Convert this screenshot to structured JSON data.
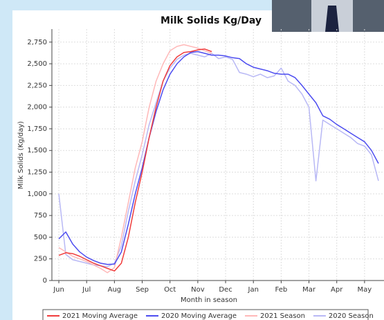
{
  "chart_data": {
    "type": "line",
    "title": "Milk Solids Kg/Day",
    "xlabel": "Month in season",
    "ylabel": "Milk Solids (Kg/day)",
    "x": [
      0,
      0.25,
      0.5,
      0.75,
      1,
      1.25,
      1.5,
      1.75,
      2,
      2.25,
      2.5,
      2.75,
      3,
      3.25,
      3.5,
      3.75,
      4,
      4.25,
      4.5,
      4.75,
      5,
      5.25,
      5.5,
      5.75,
      6,
      6.25,
      6.5,
      6.75,
      7,
      7.25,
      7.5,
      7.75,
      8,
      8.25,
      8.5,
      8.75,
      9,
      9.25,
      9.5,
      9.75,
      10,
      10.25,
      10.5,
      10.75,
      11,
      11.25,
      11.5
    ],
    "xlim": [
      -0.25,
      11.7
    ],
    "xticks": [
      {
        "value": 0,
        "label": "Jun"
      },
      {
        "value": 1,
        "label": "Jul"
      },
      {
        "value": 2,
        "label": "Aug"
      },
      {
        "value": 3,
        "label": "Sep"
      },
      {
        "value": 4,
        "label": "Oct"
      },
      {
        "value": 5,
        "label": "Nov"
      },
      {
        "value": 6,
        "label": "Dec"
      },
      {
        "value": 7,
        "label": "Jan"
      },
      {
        "value": 8,
        "label": "Feb"
      },
      {
        "value": 9,
        "label": "Mar"
      },
      {
        "value": 10,
        "label": "Apr"
      },
      {
        "value": 11,
        "label": "May"
      }
    ],
    "ylim": [
      0,
      2900
    ],
    "yticks": [
      0,
      250,
      500,
      750,
      {
        "value": 1000,
        "label": "1,000"
      },
      {
        "value": 1250,
        "label": "1,250"
      },
      {
        "value": 1500,
        "label": "1,500"
      },
      {
        "value": 1750,
        "label": "1,750"
      },
      {
        "value": 2000,
        "label": "2,000"
      },
      {
        "value": 2250,
        "label": "2,250"
      },
      {
        "value": 2500,
        "label": "2,500"
      },
      {
        "value": 2750,
        "label": "2,750"
      }
    ],
    "grid": true,
    "series": [
      {
        "name": "2020 Season",
        "color": "#b8b8f5",
        "values": [
          1000,
          300,
          240,
          220,
          200,
          180,
          170,
          160,
          200,
          400,
          800,
          1150,
          1450,
          1800,
          2050,
          2300,
          2450,
          2550,
          2600,
          2620,
          2600,
          2580,
          2620,
          2560,
          2580,
          2550,
          2400,
          2380,
          2350,
          2380,
          2340,
          2360,
          2450,
          2300,
          2250,
          2150,
          2000,
          1150,
          1850,
          1800,
          1750,
          1700,
          1650,
          1580,
          1550,
          1450,
          1150
        ]
      },
      {
        "name": "2021 Season",
        "color": "#ffb8b8",
        "values": [
          380,
          330,
          280,
          250,
          220,
          180,
          140,
          90,
          150,
          500,
          900,
          1300,
          1600,
          2000,
          2300,
          2500,
          2650,
          2700,
          2720,
          2700,
          2680,
          2650,
          2620,
          null,
          null,
          null,
          null,
          null,
          null,
          null,
          null,
          null,
          null,
          null,
          null,
          null,
          null,
          null,
          null,
          null,
          null,
          null,
          null,
          null,
          null,
          null,
          null
        ]
      },
      {
        "name": "2020 Moving Average",
        "color": "#4c4cf0",
        "values": [
          480,
          560,
          420,
          330,
          270,
          230,
          200,
          185,
          190,
          330,
          650,
          1000,
          1300,
          1650,
          1950,
          2200,
          2380,
          2500,
          2580,
          2630,
          2640,
          2620,
          2600,
          2600,
          2590,
          2570,
          2560,
          2500,
          2460,
          2440,
          2420,
          2390,
          2380,
          2380,
          2340,
          2250,
          2150,
          2050,
          1900,
          1860,
          1800,
          1750,
          1700,
          1650,
          1600,
          1500,
          1350
        ]
      },
      {
        "name": "2021 Moving Average",
        "color": "#f03c3c",
        "values": [
          290,
          320,
          310,
          280,
          240,
          200,
          170,
          140,
          110,
          200,
          500,
          900,
          1250,
          1650,
          2000,
          2300,
          2480,
          2580,
          2630,
          2640,
          2660,
          2670,
          2640,
          null,
          null,
          null,
          null,
          null,
          null,
          null,
          null,
          null,
          null,
          null,
          null,
          null,
          null,
          null,
          null,
          null,
          null,
          null,
          null,
          null,
          null,
          null,
          null
        ]
      }
    ],
    "legend_order": [
      3,
      2,
      1,
      0
    ]
  }
}
